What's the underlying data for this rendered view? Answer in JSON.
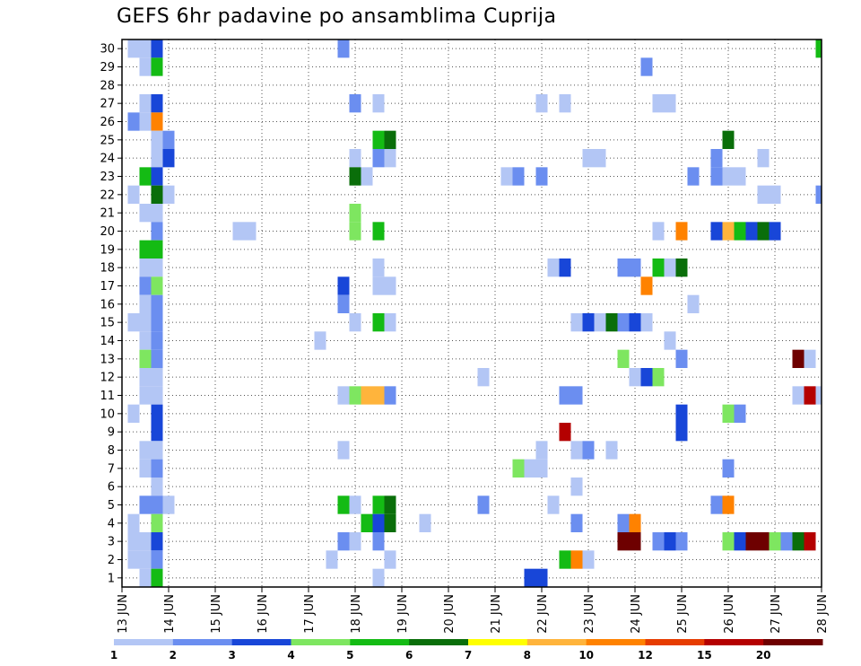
{
  "chart_data": {
    "type": "heatmap",
    "title": "GEFS 6hr padavine po ansamblima Cuprija",
    "xlabel": "",
    "ylabel": "",
    "x_tick_labels": [
      "13 JUN",
      "14 JUN",
      "15 JUN",
      "16 JUN",
      "17 JUN",
      "18 JUN",
      "19 JUN",
      "20 JUN",
      "21 JUN",
      "22 JUN",
      "23 JUN",
      "24 JUN",
      "25 JUN",
      "26 JUN",
      "27 JUN",
      "28 JUN"
    ],
    "y_tick_labels": [
      "1",
      "2",
      "3",
      "4",
      "5",
      "6",
      "7",
      "8",
      "9",
      "10",
      "11",
      "12",
      "13",
      "14",
      "15",
      "16",
      "17",
      "18",
      "19",
      "20",
      "21",
      "22",
      "23",
      "24",
      "25",
      "26",
      "27",
      "28",
      "29",
      "30"
    ],
    "y_range": [
      0,
      30
    ],
    "x_range_days": [
      0,
      15
    ],
    "grid": "dotted",
    "colorbar": {
      "labels": [
        "1",
        "2",
        "3",
        "4",
        "5",
        "6",
        "7",
        "8",
        "10",
        "12",
        "15",
        "20"
      ],
      "colors": [
        "#b3c6f5",
        "#6b8ef0",
        "#1846d8",
        "#7ee660",
        "#14bb14",
        "#0a6e0a",
        "#ffff00",
        "#ffb43c",
        "#ff8200",
        "#e63c00",
        "#b40000",
        "#6e0000"
      ]
    },
    "cells": [
      {
        "m": 30,
        "d": 0.25,
        "v": 1
      },
      {
        "m": 30,
        "d": 0.5,
        "v": 1
      },
      {
        "m": 30,
        "d": 0.75,
        "v": 3
      },
      {
        "m": 30,
        "d": 4.75,
        "v": 2
      },
      {
        "m": 30,
        "d": 15,
        "v": 5
      },
      {
        "m": 29,
        "d": 0.5,
        "v": 1
      },
      {
        "m": 29,
        "d": 0.75,
        "v": 5
      },
      {
        "m": 29,
        "d": 11.25,
        "v": 2
      },
      {
        "m": 27,
        "d": 0.5,
        "v": 1
      },
      {
        "m": 27,
        "d": 0.75,
        "v": 3
      },
      {
        "m": 27,
        "d": 5,
        "v": 2
      },
      {
        "m": 27,
        "d": 5.5,
        "v": 1
      },
      {
        "m": 27,
        "d": 9,
        "v": 1
      },
      {
        "m": 27,
        "d": 9.5,
        "v": 1
      },
      {
        "m": 27,
        "d": 11.5,
        "v": 1
      },
      {
        "m": 27,
        "d": 11.75,
        "v": 1
      },
      {
        "m": 26,
        "d": 0.25,
        "v": 2
      },
      {
        "m": 26,
        "d": 0.5,
        "v": 1
      },
      {
        "m": 26,
        "d": 0.75,
        "v": 10
      },
      {
        "m": 25,
        "d": 0.75,
        "v": 1
      },
      {
        "m": 25,
        "d": 1,
        "v": 2
      },
      {
        "m": 25,
        "d": 5.5,
        "v": 5
      },
      {
        "m": 25,
        "d": 5.75,
        "v": 6
      },
      {
        "m": 25,
        "d": 13,
        "v": 6
      },
      {
        "m": 24,
        "d": 0.75,
        "v": 1
      },
      {
        "m": 24,
        "d": 1,
        "v": 3
      },
      {
        "m": 24,
        "d": 5,
        "v": 1
      },
      {
        "m": 24,
        "d": 5.5,
        "v": 2
      },
      {
        "m": 24,
        "d": 5.75,
        "v": 1
      },
      {
        "m": 24,
        "d": 10,
        "v": 1
      },
      {
        "m": 24,
        "d": 10.25,
        "v": 1
      },
      {
        "m": 24,
        "d": 12.75,
        "v": 2
      },
      {
        "m": 24,
        "d": 13.75,
        "v": 1
      },
      {
        "m": 23,
        "d": 0.5,
        "v": 5
      },
      {
        "m": 23,
        "d": 0.75,
        "v": 3
      },
      {
        "m": 23,
        "d": 5,
        "v": 6
      },
      {
        "m": 23,
        "d": 5.25,
        "v": 1
      },
      {
        "m": 23,
        "d": 8.25,
        "v": 1
      },
      {
        "m": 23,
        "d": 8.5,
        "v": 2
      },
      {
        "m": 23,
        "d": 9,
        "v": 2
      },
      {
        "m": 23,
        "d": 12.25,
        "v": 2
      },
      {
        "m": 23,
        "d": 12.75,
        "v": 2
      },
      {
        "m": 23,
        "d": 13,
        "v": 1
      },
      {
        "m": 23,
        "d": 13.25,
        "v": 1
      },
      {
        "m": 22,
        "d": 0.25,
        "v": 1
      },
      {
        "m": 22,
        "d": 0.75,
        "v": 6
      },
      {
        "m": 22,
        "d": 1,
        "v": 1
      },
      {
        "m": 22,
        "d": 13.75,
        "v": 1
      },
      {
        "m": 22,
        "d": 14,
        "v": 1
      },
      {
        "m": 22,
        "d": 15,
        "v": 2
      },
      {
        "m": 21,
        "d": 0.5,
        "v": 1
      },
      {
        "m": 21,
        "d": 0.75,
        "v": 1
      },
      {
        "m": 21,
        "d": 5,
        "v": 4
      },
      {
        "m": 20,
        "d": 0.75,
        "v": 2
      },
      {
        "m": 20,
        "d": 2.5,
        "v": 1
      },
      {
        "m": 20,
        "d": 2.75,
        "v": 1
      },
      {
        "m": 20,
        "d": 5,
        "v": 4
      },
      {
        "m": 20,
        "d": 5.5,
        "v": 5
      },
      {
        "m": 20,
        "d": 11.5,
        "v": 1
      },
      {
        "m": 20,
        "d": 12,
        "v": 10
      },
      {
        "m": 20,
        "d": 12.75,
        "v": 3
      },
      {
        "m": 20,
        "d": 13,
        "v": 8
      },
      {
        "m": 20,
        "d": 13.25,
        "v": 5
      },
      {
        "m": 20,
        "d": 13.5,
        "v": 3
      },
      {
        "m": 20,
        "d": 13.75,
        "v": 6
      },
      {
        "m": 20,
        "d": 14,
        "v": 3
      },
      {
        "m": 19,
        "d": 0.5,
        "v": 5
      },
      {
        "m": 19,
        "d": 0.75,
        "v": 5
      },
      {
        "m": 18,
        "d": 0.5,
        "v": 1
      },
      {
        "m": 18,
        "d": 0.75,
        "v": 1
      },
      {
        "m": 18,
        "d": 5.5,
        "v": 1
      },
      {
        "m": 18,
        "d": 9.25,
        "v": 1
      },
      {
        "m": 18,
        "d": 9.5,
        "v": 3
      },
      {
        "m": 18,
        "d": 10.75,
        "v": 2
      },
      {
        "m": 18,
        "d": 11,
        "v": 2
      },
      {
        "m": 18,
        "d": 11.5,
        "v": 5
      },
      {
        "m": 18,
        "d": 11.75,
        "v": 1
      },
      {
        "m": 18,
        "d": 12,
        "v": 6
      },
      {
        "m": 17,
        "d": 0.5,
        "v": 2
      },
      {
        "m": 17,
        "d": 0.75,
        "v": 4
      },
      {
        "m": 17,
        "d": 4.75,
        "v": 3
      },
      {
        "m": 17,
        "d": 5.5,
        "v": 1
      },
      {
        "m": 17,
        "d": 5.75,
        "v": 1
      },
      {
        "m": 17,
        "d": 11.25,
        "v": 10
      },
      {
        "m": 16,
        "d": 0.5,
        "v": 1
      },
      {
        "m": 16,
        "d": 0.75,
        "v": 2
      },
      {
        "m": 16,
        "d": 4.75,
        "v": 2
      },
      {
        "m": 16,
        "d": 12.25,
        "v": 1
      },
      {
        "m": 15,
        "d": 0.25,
        "v": 1
      },
      {
        "m": 15,
        "d": 0.5,
        "v": 1
      },
      {
        "m": 15,
        "d": 0.75,
        "v": 2
      },
      {
        "m": 15,
        "d": 5,
        "v": 1
      },
      {
        "m": 15,
        "d": 5.5,
        "v": 5
      },
      {
        "m": 15,
        "d": 5.75,
        "v": 1
      },
      {
        "m": 15,
        "d": 9.75,
        "v": 1
      },
      {
        "m": 15,
        "d": 10,
        "v": 3
      },
      {
        "m": 15,
        "d": 10.25,
        "v": 1
      },
      {
        "m": 15,
        "d": 10.5,
        "v": 6
      },
      {
        "m": 15,
        "d": 10.75,
        "v": 2
      },
      {
        "m": 15,
        "d": 11,
        "v": 3
      },
      {
        "m": 15,
        "d": 11.25,
        "v": 1
      },
      {
        "m": 14,
        "d": 0.5,
        "v": 1
      },
      {
        "m": 14,
        "d": 0.75,
        "v": 2
      },
      {
        "m": 14,
        "d": 4.25,
        "v": 1
      },
      {
        "m": 14,
        "d": 11.75,
        "v": 1
      },
      {
        "m": 13,
        "d": 0.5,
        "v": 4
      },
      {
        "m": 13,
        "d": 0.75,
        "v": 2
      },
      {
        "m": 13,
        "d": 10.75,
        "v": 4
      },
      {
        "m": 13,
        "d": 12,
        "v": 2
      },
      {
        "m": 13,
        "d": 14.5,
        "v": 20
      },
      {
        "m": 13,
        "d": 14.75,
        "v": 1
      },
      {
        "m": 12,
        "d": 0.5,
        "v": 1
      },
      {
        "m": 12,
        "d": 0.75,
        "v": 1
      },
      {
        "m": 12,
        "d": 7.75,
        "v": 1
      },
      {
        "m": 12,
        "d": 11,
        "v": 1
      },
      {
        "m": 12,
        "d": 11.25,
        "v": 3
      },
      {
        "m": 12,
        "d": 11.5,
        "v": 4
      },
      {
        "m": 11,
        "d": 0.5,
        "v": 1
      },
      {
        "m": 11,
        "d": 0.75,
        "v": 1
      },
      {
        "m": 11,
        "d": 4.75,
        "v": 1
      },
      {
        "m": 11,
        "d": 5,
        "v": 4
      },
      {
        "m": 11,
        "d": 5.25,
        "v": 8
      },
      {
        "m": 11,
        "d": 5.5,
        "v": 8
      },
      {
        "m": 11,
        "d": 5.75,
        "v": 2
      },
      {
        "m": 11,
        "d": 9.5,
        "v": 2
      },
      {
        "m": 11,
        "d": 9.75,
        "v": 2
      },
      {
        "m": 11,
        "d": 14.5,
        "v": 1
      },
      {
        "m": 11,
        "d": 14.75,
        "v": 15
      },
      {
        "m": 11,
        "d": 15,
        "v": 1
      },
      {
        "m": 10,
        "d": 0.25,
        "v": 1
      },
      {
        "m": 10,
        "d": 0.75,
        "v": 3
      },
      {
        "m": 10,
        "d": 12,
        "v": 3
      },
      {
        "m": 10,
        "d": 13,
        "v": 4
      },
      {
        "m": 10,
        "d": 13.25,
        "v": 2
      },
      {
        "m": 9,
        "d": 0.75,
        "v": 3
      },
      {
        "m": 9,
        "d": 9.5,
        "v": 15
      },
      {
        "m": 9,
        "d": 12,
        "v": 3
      },
      {
        "m": 8,
        "d": 0.5,
        "v": 1
      },
      {
        "m": 8,
        "d": 0.75,
        "v": 1
      },
      {
        "m": 8,
        "d": 4.75,
        "v": 1
      },
      {
        "m": 8,
        "d": 9,
        "v": 1
      },
      {
        "m": 8,
        "d": 9.75,
        "v": 1
      },
      {
        "m": 8,
        "d": 10,
        "v": 2
      },
      {
        "m": 8,
        "d": 10.5,
        "v": 1
      },
      {
        "m": 7,
        "d": 0.5,
        "v": 1
      },
      {
        "m": 7,
        "d": 0.75,
        "v": 2
      },
      {
        "m": 7,
        "d": 8.5,
        "v": 4
      },
      {
        "m": 7,
        "d": 8.75,
        "v": 1
      },
      {
        "m": 7,
        "d": 9,
        "v": 1
      },
      {
        "m": 7,
        "d": 13,
        "v": 2
      },
      {
        "m": 6,
        "d": 0.75,
        "v": 1
      },
      {
        "m": 6,
        "d": 9.75,
        "v": 1
      },
      {
        "m": 5,
        "d": 0.5,
        "v": 2
      },
      {
        "m": 5,
        "d": 0.75,
        "v": 2
      },
      {
        "m": 5,
        "d": 1,
        "v": 1
      },
      {
        "m": 5,
        "d": 4.75,
        "v": 5
      },
      {
        "m": 5,
        "d": 5,
        "v": 1
      },
      {
        "m": 5,
        "d": 5.5,
        "v": 5
      },
      {
        "m": 5,
        "d": 5.75,
        "v": 6
      },
      {
        "m": 5,
        "d": 7.75,
        "v": 2
      },
      {
        "m": 5,
        "d": 9.25,
        "v": 1
      },
      {
        "m": 5,
        "d": 12.75,
        "v": 2
      },
      {
        "m": 5,
        "d": 13,
        "v": 10
      },
      {
        "m": 4,
        "d": 0.25,
        "v": 1
      },
      {
        "m": 4,
        "d": 0.75,
        "v": 4
      },
      {
        "m": 4,
        "d": 5.25,
        "v": 5
      },
      {
        "m": 4,
        "d": 5.5,
        "v": 3
      },
      {
        "m": 4,
        "d": 5.75,
        "v": 6
      },
      {
        "m": 4,
        "d": 6.5,
        "v": 1
      },
      {
        "m": 4,
        "d": 9.75,
        "v": 2
      },
      {
        "m": 4,
        "d": 10.75,
        "v": 2
      },
      {
        "m": 4,
        "d": 11,
        "v": 10
      },
      {
        "m": 3,
        "d": 0.25,
        "v": 1
      },
      {
        "m": 3,
        "d": 0.5,
        "v": 1
      },
      {
        "m": 3,
        "d": 0.75,
        "v": 3
      },
      {
        "m": 3,
        "d": 4.75,
        "v": 2
      },
      {
        "m": 3,
        "d": 5,
        "v": 1
      },
      {
        "m": 3,
        "d": 5.5,
        "v": 2
      },
      {
        "m": 3,
        "d": 10.75,
        "v": 20
      },
      {
        "m": 3,
        "d": 11,
        "v": 20
      },
      {
        "m": 3,
        "d": 11.5,
        "v": 2
      },
      {
        "m": 3,
        "d": 11.75,
        "v": 3
      },
      {
        "m": 3,
        "d": 12,
        "v": 2
      },
      {
        "m": 3,
        "d": 13,
        "v": 4
      },
      {
        "m": 3,
        "d": 13.25,
        "v": 3
      },
      {
        "m": 3,
        "d": 13.5,
        "v": 20
      },
      {
        "m": 3,
        "d": 13.75,
        "v": 20
      },
      {
        "m": 3,
        "d": 14,
        "v": 4
      },
      {
        "m": 3,
        "d": 14.25,
        "v": 2
      },
      {
        "m": 3,
        "d": 14.5,
        "v": 6
      },
      {
        "m": 3,
        "d": 14.75,
        "v": 15
      },
      {
        "m": 2,
        "d": 0.25,
        "v": 1
      },
      {
        "m": 2,
        "d": 0.5,
        "v": 1
      },
      {
        "m": 2,
        "d": 0.75,
        "v": 2
      },
      {
        "m": 2,
        "d": 4.5,
        "v": 1
      },
      {
        "m": 2,
        "d": 5.75,
        "v": 1
      },
      {
        "m": 2,
        "d": 9.5,
        "v": 5
      },
      {
        "m": 2,
        "d": 9.75,
        "v": 10
      },
      {
        "m": 2,
        "d": 10,
        "v": 1
      },
      {
        "m": 1,
        "d": 0.5,
        "v": 1
      },
      {
        "m": 1,
        "d": 0.75,
        "v": 5
      },
      {
        "m": 1,
        "d": 5.5,
        "v": 1
      },
      {
        "m": 1,
        "d": 8.75,
        "v": 3
      },
      {
        "m": 1,
        "d": 9,
        "v": 3
      }
    ]
  }
}
